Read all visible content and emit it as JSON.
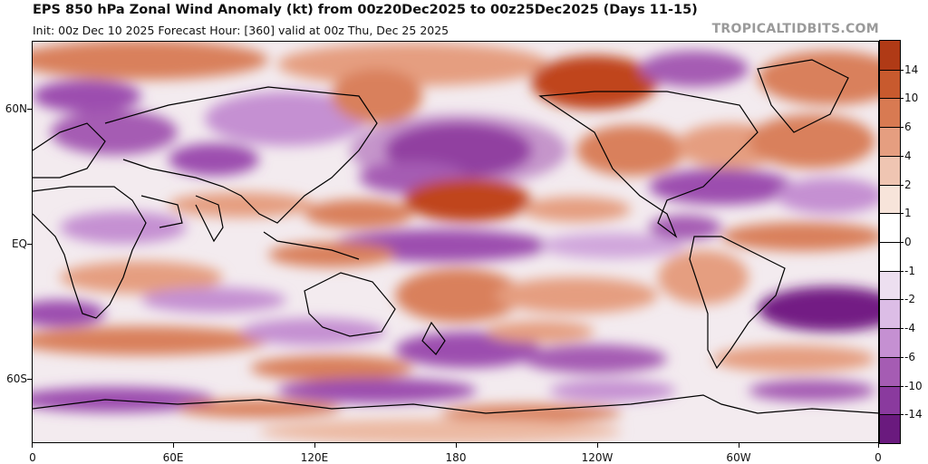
{
  "header": {
    "title": "EPS 850 hPa Zonal Wind Anomaly (kt) from 00z20Dec2025 to 00z25Dec2025 (Days 11-15)",
    "subtitle": "Init: 00z Dec 10 2025   Forecast Hour: [360]   valid at 00z Thu, Dec 25 2025",
    "brand": "TROPICALTIDBITS.COM"
  },
  "axes": {
    "lat_labels": [
      "60N",
      "EQ",
      "60S"
    ],
    "lon_labels": [
      "0",
      "60E",
      "120E",
      "180",
      "120W",
      "60W",
      "0"
    ]
  },
  "colorbar": {
    "labels": [
      "14",
      "10",
      "6",
      "4",
      "2",
      "1",
      "0",
      "-1",
      "-2",
      "-4",
      "-6",
      "-10",
      "-14"
    ],
    "colors": [
      "#b03a16",
      "#c85a2e",
      "#d87a52",
      "#e59e80",
      "#efc5b2",
      "#f7e4da",
      "#ffffff",
      "#ffffff",
      "#eddff0",
      "#dcbde6",
      "#c590d2",
      "#a55cb3",
      "#8a3a9e",
      "#6a1a7e"
    ]
  },
  "palette": {
    "ocean_base": "#f2e8ee",
    "strong_pos": "#c0441c",
    "mod_pos": "#d9805c",
    "weak_pos": "#ecb9a2",
    "strong_neg": "#731a84",
    "mod_neg": "#9c4daf",
    "weak_neg": "#d0a6dc",
    "coast": "#000000"
  }
}
